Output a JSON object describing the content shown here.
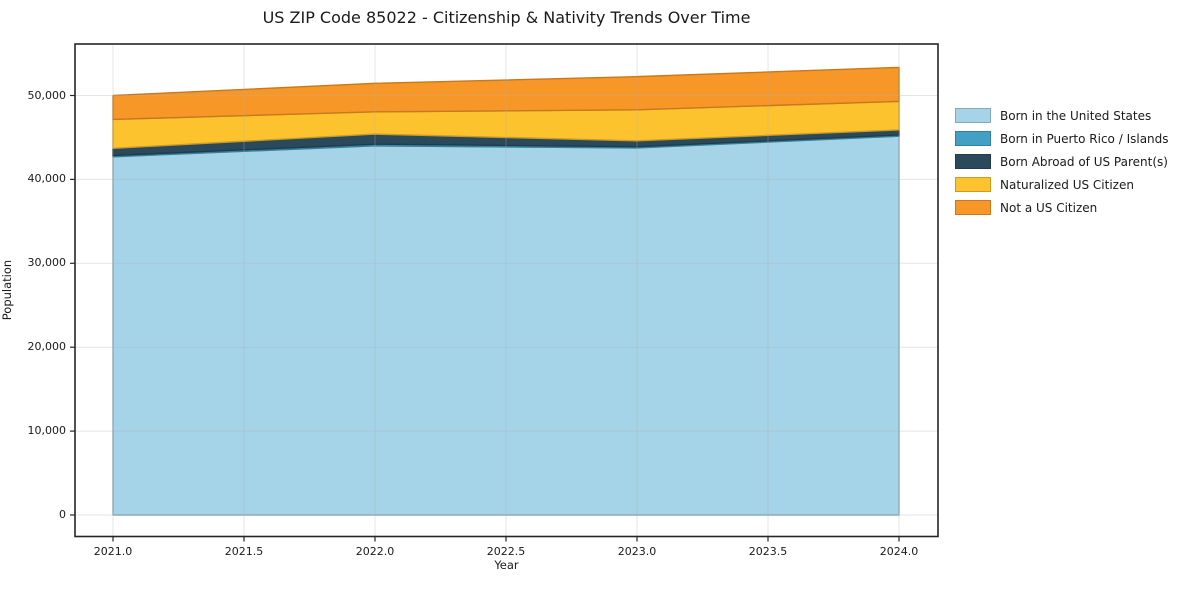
{
  "title": "US ZIP Code 85022 - Citizenship & Nativity Trends Over Time",
  "axis": {
    "xlabel": "Year",
    "ylabel": "Population"
  },
  "colors": {
    "spine": "#262626",
    "grid": "#b0b0b0",
    "text": "#1a1a1a",
    "background": "#ffffff"
  },
  "chart_data": {
    "type": "area",
    "stacked": true,
    "title": "US ZIP Code 85022 - Citizenship & Nativity Trends Over Time",
    "xlabel": "Year",
    "ylabel": "Population",
    "x": [
      2021,
      2022,
      2023,
      2024
    ],
    "series": [
      {
        "name": "Born in the United States",
        "color": "#a5d3e8",
        "values": [
          42700,
          44000,
          43750,
          45150
        ]
      },
      {
        "name": "Born in Puerto Rico / Islands",
        "color": "#41a0c3",
        "values": [
          150,
          200,
          150,
          150
        ]
      },
      {
        "name": "Born Abroad of US Parent(s)",
        "color": "#2a4a5c",
        "values": [
          850,
          1200,
          700,
          600
        ]
      },
      {
        "name": "Naturalized US Citizen",
        "color": "#fdc32f",
        "values": [
          3450,
          2650,
          3700,
          3400
        ]
      },
      {
        "name": "Not a US Citizen",
        "color": "#f79727",
        "values": [
          2850,
          3400,
          3950,
          4050
        ]
      }
    ],
    "x_tick_values": [
      2021.0,
      2021.5,
      2022.0,
      2022.5,
      2023.0,
      2023.5,
      2024.0
    ],
    "x_tick_labels": [
      "2021.0",
      "2021.5",
      "2022.0",
      "2022.5",
      "2023.0",
      "2023.5",
      "2024.0"
    ],
    "y_tick_values": [
      0,
      10000,
      20000,
      30000,
      40000,
      50000
    ],
    "y_tick_labels": [
      "0",
      "10,000",
      "20,000",
      "30,000",
      "40,000",
      "50,000"
    ],
    "xlim": [
      2020.85,
      2024.15
    ],
    "ylim": [
      -2560,
      56160
    ],
    "grid": true,
    "legend_position": "right"
  }
}
